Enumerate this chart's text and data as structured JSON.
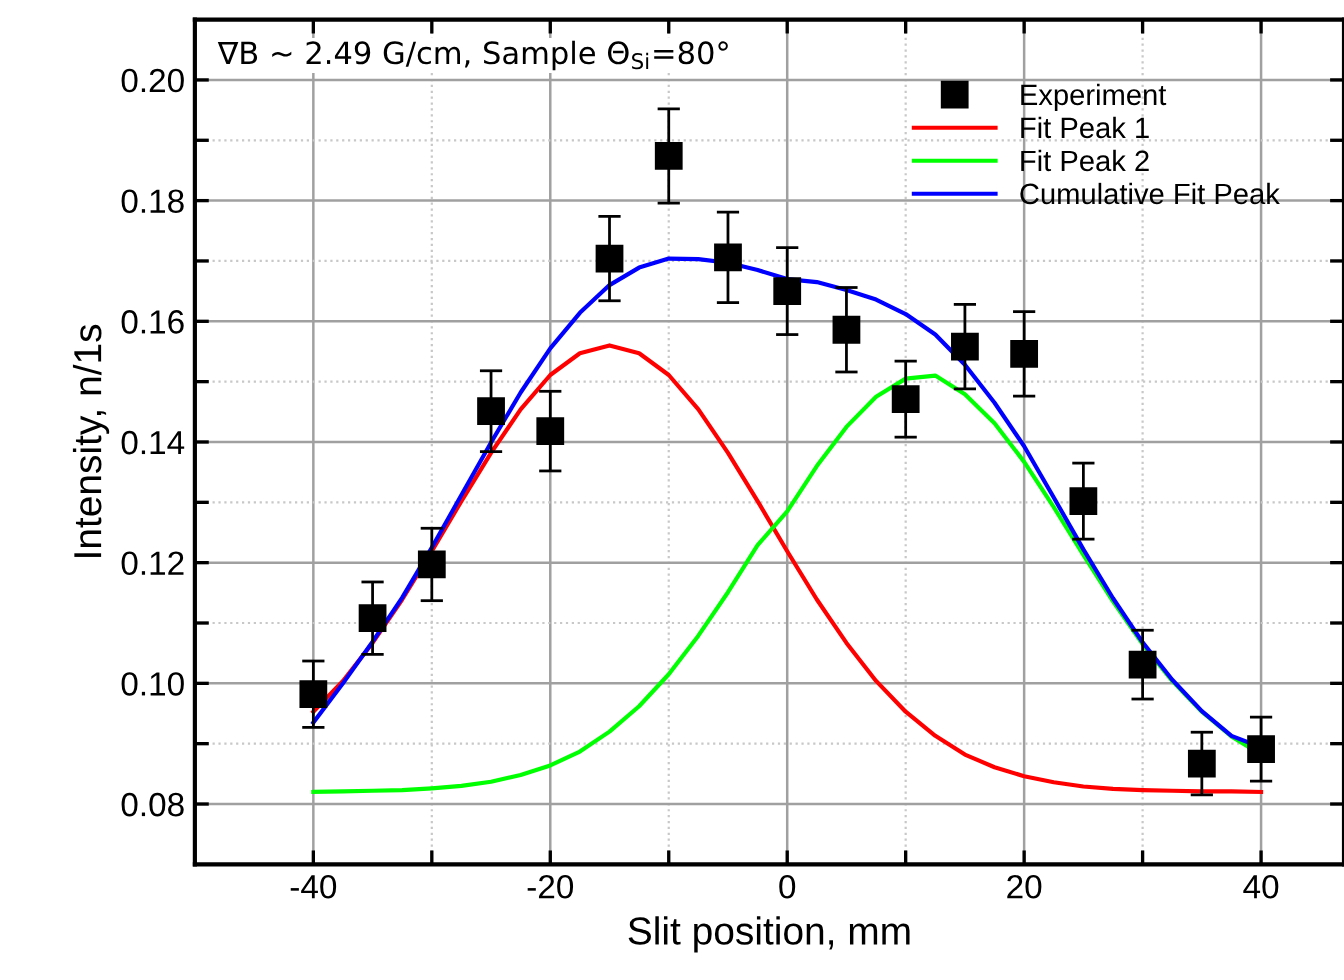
{
  "chart_data": {
    "type": "scatter",
    "xlabel": "Slit position, mm",
    "ylabel": "Intensity, n/1s",
    "annotations": [
      "∇B ~ 2.49 G/cm, Sample Θ$_{Si}$=80°"
    ],
    "xlim": [
      -50,
      47
    ],
    "ylim": [
      0.07,
      0.21
    ],
    "xticks": [
      -40,
      {
        "value": -30,
        "label": null
      },
      -20,
      {
        "value": -10,
        "label": null
      },
      0,
      {
        "value": 10,
        "label": null
      },
      20,
      {
        "value": 30,
        "label": null
      },
      40
    ],
    "yticks": [
      0.08,
      {
        "value": 0.09,
        "label": null
      },
      {
        "value": 0.1,
        "label": "0.10"
      },
      {
        "value": 0.11,
        "label": null
      },
      0.12,
      {
        "value": 0.13,
        "label": null
      },
      0.14,
      {
        "value": 0.15,
        "label": null
      },
      0.16,
      {
        "value": 0.17,
        "label": null
      },
      0.18,
      {
        "value": 0.19,
        "label": null
      },
      {
        "value": 0.2,
        "label": "0.20"
      }
    ],
    "grid": true,
    "legend": "top right",
    "series": [
      {
        "name": "Experiment",
        "type": "scatter",
        "marker": "square",
        "color": "#000000",
        "x": [
          -40,
          -35,
          -30,
          -25,
          -20,
          -15,
          -10,
          -5,
          0,
          5,
          10,
          15,
          20,
          25,
          30,
          35,
          40
        ],
        "values": [
          0.0982,
          0.1108,
          0.1197,
          0.1451,
          0.1418,
          0.1704,
          0.1874,
          0.1706,
          0.165,
          0.1586,
          0.1471,
          0.1558,
          0.1546,
          0.1302,
          0.1031,
          0.0867,
          0.0891
        ],
        "errors": [
          0.0055,
          0.006,
          0.006,
          0.0067,
          0.0066,
          0.007,
          0.0078,
          0.0075,
          0.0072,
          0.007,
          0.0063,
          0.007,
          0.007,
          0.0063,
          0.0057,
          0.0052,
          0.0053
        ]
      },
      {
        "name": "Fit Peak 1",
        "type": "line",
        "marker": "none",
        "color": "#ff0000",
        "x": [
          -40,
          -37.5,
          -35,
          -32.5,
          -30,
          -27.5,
          -25,
          -22.5,
          -20,
          -17.5,
          -15,
          -12.5,
          -10,
          -7.5,
          -5,
          -2.5,
          0,
          2.5,
          5,
          7.5,
          10,
          12.5,
          15,
          17.5,
          20,
          22.5,
          25,
          27.5,
          30,
          32.5,
          35,
          37.5,
          40
        ],
        "values": [
          0.0953,
          0.1004,
          0.1067,
          0.1139,
          0.1219,
          0.1302,
          0.1382,
          0.1454,
          0.1511,
          0.1547,
          0.156,
          0.1547,
          0.1511,
          0.1454,
          0.1382,
          0.1302,
          0.1219,
          0.1139,
          0.1067,
          0.1004,
          0.0953,
          0.0913,
          0.0882,
          0.0861,
          0.0846,
          0.0836,
          0.0829,
          0.0825,
          0.0823,
          0.0822,
          0.0821,
          0.0821,
          0.082
        ]
      },
      {
        "name": "Fit Peak 2",
        "type": "line",
        "marker": "none",
        "color": "#00ff00",
        "x": [
          -40,
          -37.5,
          -35,
          -32.5,
          -30,
          -27.5,
          -25,
          -22.5,
          -20,
          -17.5,
          -15,
          -12.5,
          -10,
          -7.5,
          -5,
          -2.5,
          0,
          2.5,
          5,
          7.5,
          10,
          12.5,
          15,
          17.5,
          20,
          22.5,
          25,
          27.5,
          30,
          32.5,
          35,
          37.5,
          40
        ],
        "values": [
          0.082,
          0.0821,
          0.0822,
          0.0823,
          0.0826,
          0.083,
          0.0837,
          0.0848,
          0.0864,
          0.0887,
          0.092,
          0.0962,
          0.1015,
          0.1079,
          0.1151,
          0.1229,
          0.1285,
          0.136,
          0.1425,
          0.1475,
          0.1505,
          0.151,
          0.1479,
          0.1431,
          0.1367,
          0.1292,
          0.1213,
          0.1136,
          0.1065,
          0.1004,
          0.0953,
          0.0912,
          0.0882
        ]
      },
      {
        "name": "Cumulative Fit Peak",
        "type": "line",
        "marker": "none",
        "color": "#0000ff",
        "x": [
          -40,
          -37.5,
          -35,
          -32.5,
          -30,
          -27.5,
          -25,
          -22.5,
          -20,
          -17.5,
          -15,
          -12.5,
          -10,
          -7.5,
          -5,
          -2.5,
          0,
          2.5,
          5,
          7.5,
          10,
          12.5,
          15,
          17.5,
          20,
          22.5,
          25,
          27.5,
          30,
          32.5,
          35,
          37.5,
          40
        ],
        "values": [
          0.0935,
          0.1,
          0.1069,
          0.1142,
          0.1225,
          0.1312,
          0.1399,
          0.1482,
          0.1555,
          0.1614,
          0.166,
          0.1689,
          0.1704,
          0.1703,
          0.1697,
          0.1685,
          0.167,
          0.1665,
          0.1652,
          0.1636,
          0.1612,
          0.1578,
          0.1528,
          0.1465,
          0.1393,
          0.1308,
          0.1222,
          0.1141,
          0.1068,
          0.1006,
          0.0954,
          0.0913,
          0.0894
        ]
      }
    ]
  }
}
